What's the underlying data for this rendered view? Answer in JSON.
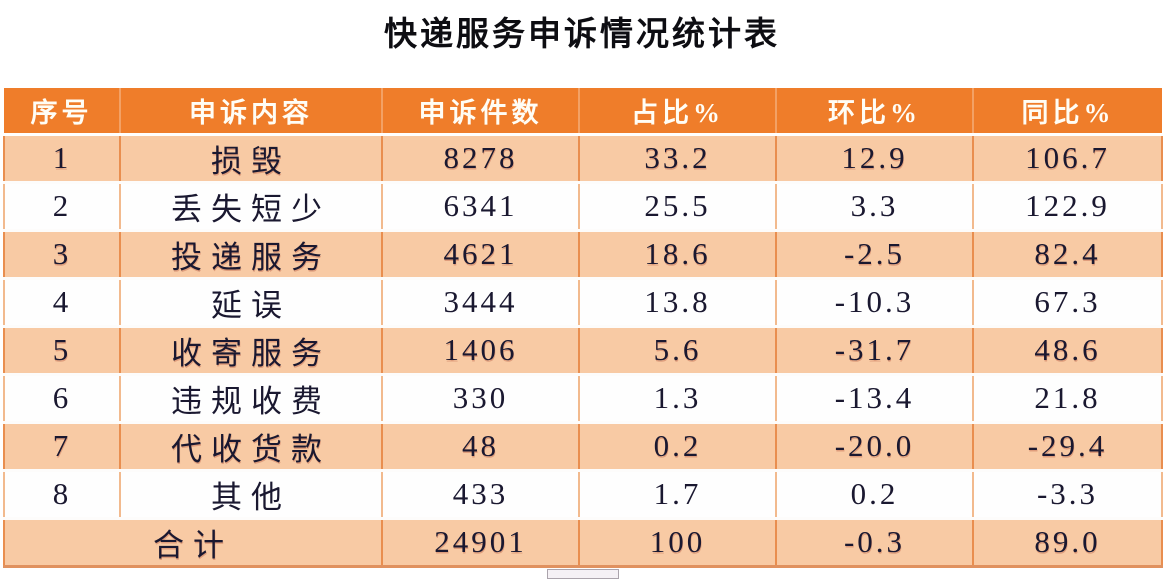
{
  "title": "快递服务申诉情况统计表",
  "table": {
    "columns": [
      "序号",
      "申诉内容",
      "申诉件数",
      "占比%",
      "环比%",
      "同比%"
    ],
    "rows": [
      {
        "no": "1",
        "content": "损毁",
        "count": "8278",
        "share": "33.2",
        "mom": "12.9",
        "yoy": "106.7"
      },
      {
        "no": "2",
        "content": "丢失短少",
        "count": "6341",
        "share": "25.5",
        "mom": "3.3",
        "yoy": "122.9"
      },
      {
        "no": "3",
        "content": "投递服务",
        "count": "4621",
        "share": "18.6",
        "mom": "-2.5",
        "yoy": "82.4"
      },
      {
        "no": "4",
        "content": "延误",
        "count": "3444",
        "share": "13.8",
        "mom": "-10.3",
        "yoy": "67.3"
      },
      {
        "no": "5",
        "content": "收寄服务",
        "count": "1406",
        "share": "5.6",
        "mom": "-31.7",
        "yoy": "48.6"
      },
      {
        "no": "6",
        "content": "违规收费",
        "count": "330",
        "share": "1.3",
        "mom": "-13.4",
        "yoy": "21.8"
      },
      {
        "no": "7",
        "content": "代收货款",
        "count": "48",
        "share": "0.2",
        "mom": "-20.0",
        "yoy": "-29.4"
      },
      {
        "no": "8",
        "content": "其他",
        "count": "433",
        "share": "1.7",
        "mom": "0.2",
        "yoy": "-3.3"
      }
    ],
    "total": {
      "label": "合计",
      "count": "24901",
      "share": "100",
      "mom": "-0.3",
      "yoy": "89.0"
    }
  },
  "colors": {
    "header_orange": "#EF7D2A",
    "row_peach": "#F8CAA4",
    "row_white": "#FEFEFE",
    "border_orange": "#E98E4F",
    "header_text": "#FFFDF5",
    "body_text": "#1A1830"
  },
  "chart_data": {
    "type": "table",
    "title": "快递服务申诉情况统计表",
    "columns": [
      "序号",
      "申诉内容",
      "申诉件数",
      "占比%",
      "环比%",
      "同比%"
    ],
    "rows": [
      [
        "1",
        "损毁",
        8278,
        33.2,
        12.9,
        106.7
      ],
      [
        "2",
        "丢失短少",
        6341,
        25.5,
        3.3,
        122.9
      ],
      [
        "3",
        "投递服务",
        4621,
        18.6,
        -2.5,
        82.4
      ],
      [
        "4",
        "延误",
        3444,
        13.8,
        -10.3,
        67.3
      ],
      [
        "5",
        "收寄服务",
        1406,
        5.6,
        -31.7,
        48.6
      ],
      [
        "6",
        "违规收费",
        330,
        1.3,
        -13.4,
        21.8
      ],
      [
        "7",
        "代收货款",
        48,
        0.2,
        -20.0,
        -29.4
      ],
      [
        "8",
        "其他",
        433,
        1.7,
        0.2,
        -3.3
      ],
      [
        "合计",
        "",
        24901,
        100,
        -0.3,
        89.0
      ]
    ]
  }
}
